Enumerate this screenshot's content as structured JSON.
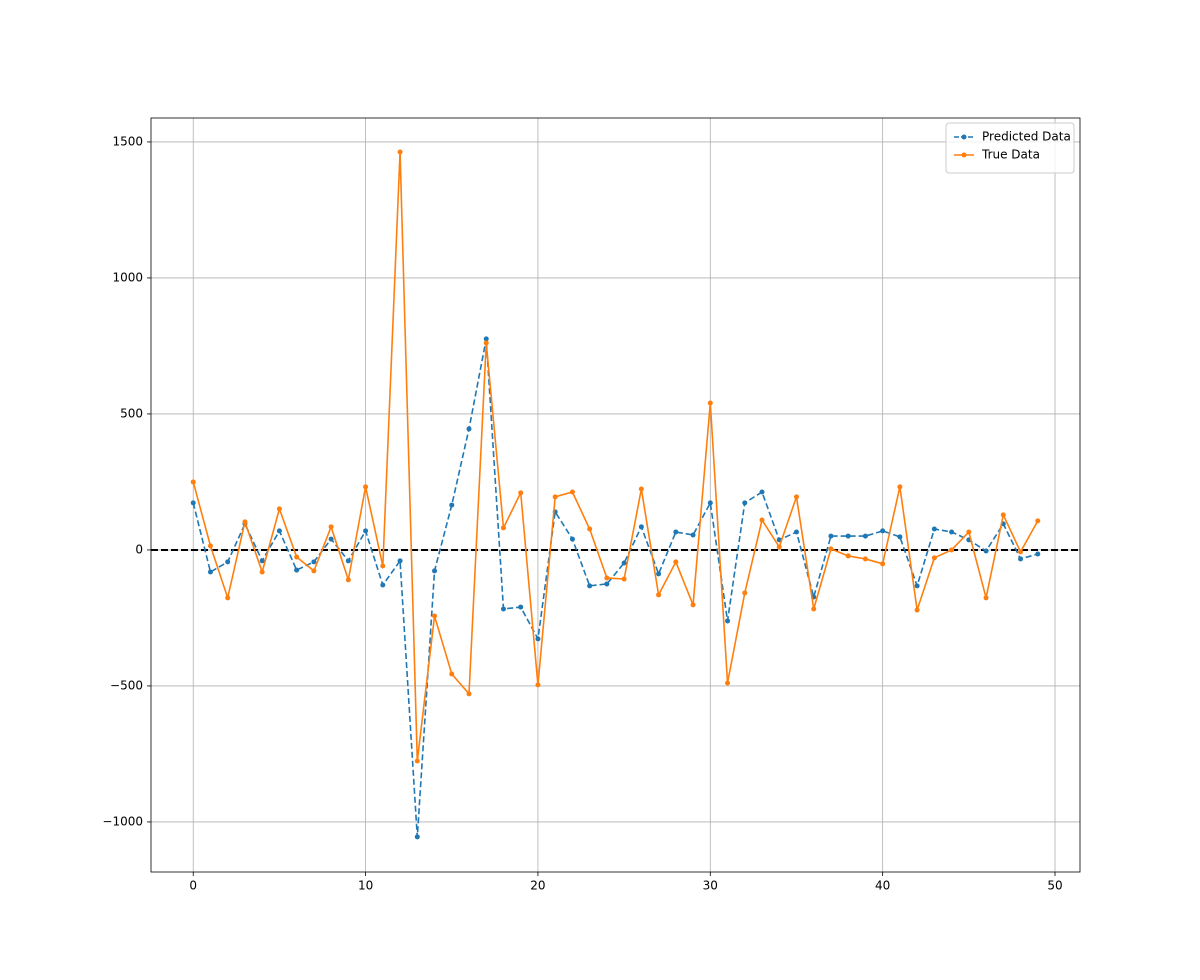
{
  "chart_data": {
    "type": "line",
    "x": [
      0,
      1,
      2,
      3,
      4,
      5,
      6,
      7,
      8,
      9,
      10,
      11,
      12,
      13,
      14,
      15,
      16,
      17,
      18,
      19,
      20,
      21,
      22,
      23,
      24,
      25,
      26,
      27,
      28,
      29,
      30,
      31,
      32,
      33,
      34,
      35,
      36,
      37,
      38,
      39,
      40,
      41,
      42,
      43,
      44,
      45,
      46,
      47,
      48,
      49
    ],
    "series": [
      {
        "name": "Predicted Data",
        "color": "#1f77b4",
        "style": "dashed",
        "values": [
          173,
          -81,
          -44,
          96,
          -40,
          70,
          -74,
          -44,
          40,
          -40,
          70,
          -129,
          -40,
          -1055,
          -77,
          165,
          445,
          776,
          -217,
          -210,
          -327,
          140,
          40,
          -132,
          -125,
          -48,
          85,
          -88,
          66,
          55,
          173,
          -261,
          173,
          213,
          37,
          66,
          -173,
          51,
          51,
          51,
          70,
          48,
          -132,
          77,
          66,
          37,
          -4,
          96,
          -33,
          -15
        ]
      },
      {
        "name": "True Data",
        "color": "#ff7f0e",
        "style": "solid",
        "values": [
          250,
          15,
          -176,
          103,
          -81,
          151,
          -26,
          -77,
          85,
          -110,
          232,
          -59,
          1463,
          -776,
          -243,
          -456,
          -529,
          761,
          81,
          210,
          -496,
          195,
          213,
          77,
          -103,
          -107,
          224,
          -165,
          -44,
          -202,
          540,
          -489,
          -158,
          110,
          11,
          195,
          -217,
          4,
          -22,
          -33,
          -51,
          232,
          -221,
          -29,
          0,
          66,
          -176,
          129,
          -7,
          107
        ]
      }
    ],
    "hline": {
      "y": 0,
      "color": "#000000",
      "style": "dashed"
    },
    "xlim": [
      -2.45,
      51.45
    ],
    "ylim": [
      -1184,
      1588
    ],
    "xticks": [
      0,
      10,
      20,
      30,
      40,
      50
    ],
    "yticks": [
      {
        "value": -1000,
        "label": "−1000"
      },
      {
        "value": -500,
        "label": "−500"
      },
      0,
      500,
      1000,
      1500
    ],
    "grid": true,
    "legend": "upper right"
  }
}
